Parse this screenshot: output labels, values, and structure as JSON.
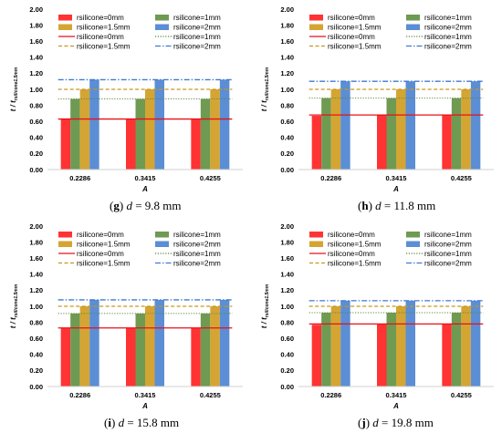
{
  "chart_data": [
    {
      "type": "bar",
      "panel": "g",
      "caption": {
        "letter": "g",
        "var": "d",
        "rest": " = 9.8 mm"
      },
      "categories": [
        "0.2286",
        "0.3415",
        "0.4255"
      ],
      "xlabel": "A",
      "ylabel": {
        "main": "t / t",
        "sub": "rsilicone1.5mm"
      },
      "ylim": [
        0,
        2.0
      ],
      "yticks": [
        "0.00",
        "0.20",
        "0.40",
        "0.60",
        "0.80",
        "1.00",
        "1.20",
        "1.40",
        "1.60",
        "1.80",
        "2.00"
      ],
      "series": [
        {
          "name": "rsilicone=0mm",
          "values": [
            0.63,
            0.63,
            0.63
          ],
          "color": "#ff3333"
        },
        {
          "name": "rsilicone=1mm",
          "values": [
            0.88,
            0.88,
            0.88
          ],
          "color": "#6f9a52"
        },
        {
          "name": "rsilicone=1.5mm",
          "values": [
            1.0,
            1.0,
            1.0
          ],
          "color": "#d4a533"
        },
        {
          "name": "rsilicone=2mm",
          "values": [
            1.12,
            1.12,
            1.12
          ],
          "color": "#5b8ed4"
        }
      ],
      "lines": [
        {
          "name": "rsilicone=0mm",
          "value": 0.63,
          "color": "#e8101a",
          "dash": "solid"
        },
        {
          "name": "rsilicone=1mm",
          "value": 0.88,
          "color": "#5e8a3e",
          "dash": "dotted"
        },
        {
          "name": "rsilicone=1.5mm",
          "value": 1.0,
          "color": "#c8961a",
          "dash": "dashed"
        },
        {
          "name": "rsilicone=2mm",
          "value": 1.12,
          "color": "#3f7ad0",
          "dash": "dashdot"
        }
      ]
    },
    {
      "type": "bar",
      "panel": "h",
      "caption": {
        "letter": "h",
        "var": "d",
        "rest": " = 11.8 mm"
      },
      "categories": [
        "0.2286",
        "0.3415",
        "0.4255"
      ],
      "xlabel": "A",
      "ylabel": {
        "main": "t / t",
        "sub": "rsilicone1.5mm"
      },
      "ylim": [
        0,
        2.0
      ],
      "yticks": [
        "0.00",
        "0.20",
        "0.40",
        "0.60",
        "0.80",
        "1.00",
        "1.20",
        "1.40",
        "1.60",
        "1.80",
        "2.00"
      ],
      "series": [
        {
          "name": "rsilicone=0mm",
          "values": [
            0.67,
            0.68,
            0.68
          ],
          "color": "#ff3333"
        },
        {
          "name": "rsilicone=1mm",
          "values": [
            0.89,
            0.89,
            0.89
          ],
          "color": "#6f9a52"
        },
        {
          "name": "rsilicone=1.5mm",
          "values": [
            1.0,
            1.0,
            1.0
          ],
          "color": "#d4a533"
        },
        {
          "name": "rsilicone=2mm",
          "values": [
            1.1,
            1.1,
            1.1
          ],
          "color": "#5b8ed4"
        }
      ],
      "lines": [
        {
          "name": "rsilicone=0mm",
          "value": 0.68,
          "color": "#e8101a",
          "dash": "solid"
        },
        {
          "name": "rsilicone=1mm",
          "value": 0.89,
          "color": "#5e8a3e",
          "dash": "dotted"
        },
        {
          "name": "rsilicone=1.5mm",
          "value": 1.0,
          "color": "#c8961a",
          "dash": "dashed"
        },
        {
          "name": "rsilicone=2mm",
          "value": 1.1,
          "color": "#3f7ad0",
          "dash": "dashdot"
        }
      ]
    },
    {
      "type": "bar",
      "panel": "i",
      "caption": {
        "letter": "i",
        "var": "d",
        "rest": " = 15.8 mm"
      },
      "categories": [
        "0.2286",
        "0.3415",
        "0.4255"
      ],
      "xlabel": "A",
      "ylabel": {
        "main": "t / t",
        "sub": "rsilicone1.5mm"
      },
      "ylim": [
        0,
        2.0
      ],
      "yticks": [
        "0.00",
        "0.20",
        "0.40",
        "0.60",
        "0.80",
        "1.00",
        "1.20",
        "1.40",
        "1.60",
        "1.80",
        "2.00"
      ],
      "series": [
        {
          "name": "rsilicone=0mm",
          "values": [
            0.73,
            0.73,
            0.73
          ],
          "color": "#ff3333"
        },
        {
          "name": "rsilicone=1mm",
          "values": [
            0.91,
            0.91,
            0.91
          ],
          "color": "#6f9a52"
        },
        {
          "name": "rsilicone=1.5mm",
          "values": [
            1.0,
            1.0,
            1.0
          ],
          "color": "#d4a533"
        },
        {
          "name": "rsilicone=2mm",
          "values": [
            1.08,
            1.08,
            1.08
          ],
          "color": "#5b8ed4"
        }
      ],
      "lines": [
        {
          "name": "rsilicone=0mm",
          "value": 0.73,
          "color": "#e8101a",
          "dash": "solid"
        },
        {
          "name": "rsilicone=1mm",
          "value": 0.91,
          "color": "#5e8a3e",
          "dash": "dotted"
        },
        {
          "name": "rsilicone=1.5mm",
          "value": 1.0,
          "color": "#c8961a",
          "dash": "dashed"
        },
        {
          "name": "rsilicone=2mm",
          "value": 1.08,
          "color": "#3f7ad0",
          "dash": "dashdot"
        }
      ]
    },
    {
      "type": "bar",
      "panel": "j",
      "caption": {
        "letter": "j",
        "var": "d",
        "rest": " = 19.8 mm"
      },
      "categories": [
        "0.2286",
        "0.3415",
        "0.4255"
      ],
      "xlabel": "A",
      "ylabel": {
        "main": "t / t",
        "sub": "rsilicone1.5mm"
      },
      "ylim": [
        0,
        2.0
      ],
      "yticks": [
        "0.00",
        "0.20",
        "0.40",
        "0.60",
        "0.80",
        "1.00",
        "1.20",
        "1.40",
        "1.60",
        "1.80",
        "2.00"
      ],
      "series": [
        {
          "name": "rsilicone=0mm",
          "values": [
            0.77,
            0.78,
            0.78
          ],
          "color": "#ff3333"
        },
        {
          "name": "rsilicone=1mm",
          "values": [
            0.92,
            0.92,
            0.92
          ],
          "color": "#6f9a52"
        },
        {
          "name": "rsilicone=1.5mm",
          "values": [
            1.0,
            1.0,
            1.0
          ],
          "color": "#d4a533"
        },
        {
          "name": "rsilicone=2mm",
          "values": [
            1.07,
            1.07,
            1.07
          ],
          "color": "#5b8ed4"
        }
      ],
      "lines": [
        {
          "name": "rsilicone=0mm",
          "value": 0.78,
          "color": "#e8101a",
          "dash": "solid"
        },
        {
          "name": "rsilicone=1mm",
          "value": 0.92,
          "color": "#5e8a3e",
          "dash": "dotted"
        },
        {
          "name": "rsilicone=1.5mm",
          "value": 1.0,
          "color": "#c8961a",
          "dash": "dashed"
        },
        {
          "name": "rsilicone=2mm",
          "value": 1.07,
          "color": "#3f7ad0",
          "dash": "dashdot"
        }
      ]
    }
  ]
}
